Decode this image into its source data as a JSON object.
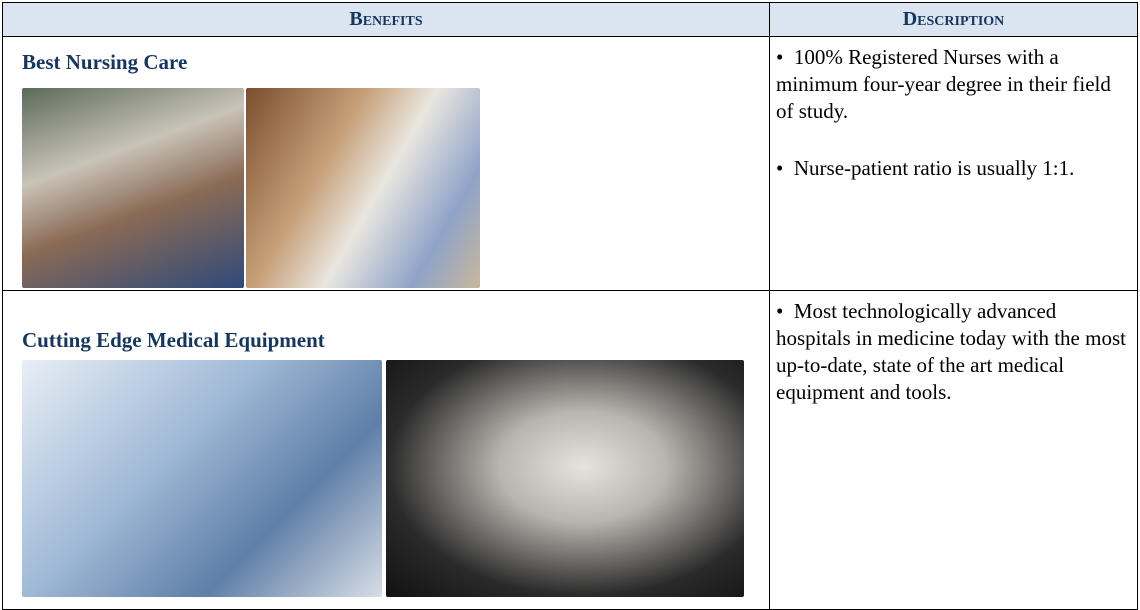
{
  "table": {
    "header": [
      "Benefits",
      "Description"
    ],
    "rows": [
      {
        "title": "Best Nursing Care",
        "bullets": [
          "100% Registered Nurses with a minimum four-year degree in their field of study.",
          "Nurse-patient ratio is usually 1:1."
        ]
      },
      {
        "title": "Cutting Edge Medical Equipment",
        "bullets": [
          "Most technologically advanced hospitals in medicine today with the most up-to-date, state of the art medical equipment and tools."
        ]
      }
    ]
  }
}
